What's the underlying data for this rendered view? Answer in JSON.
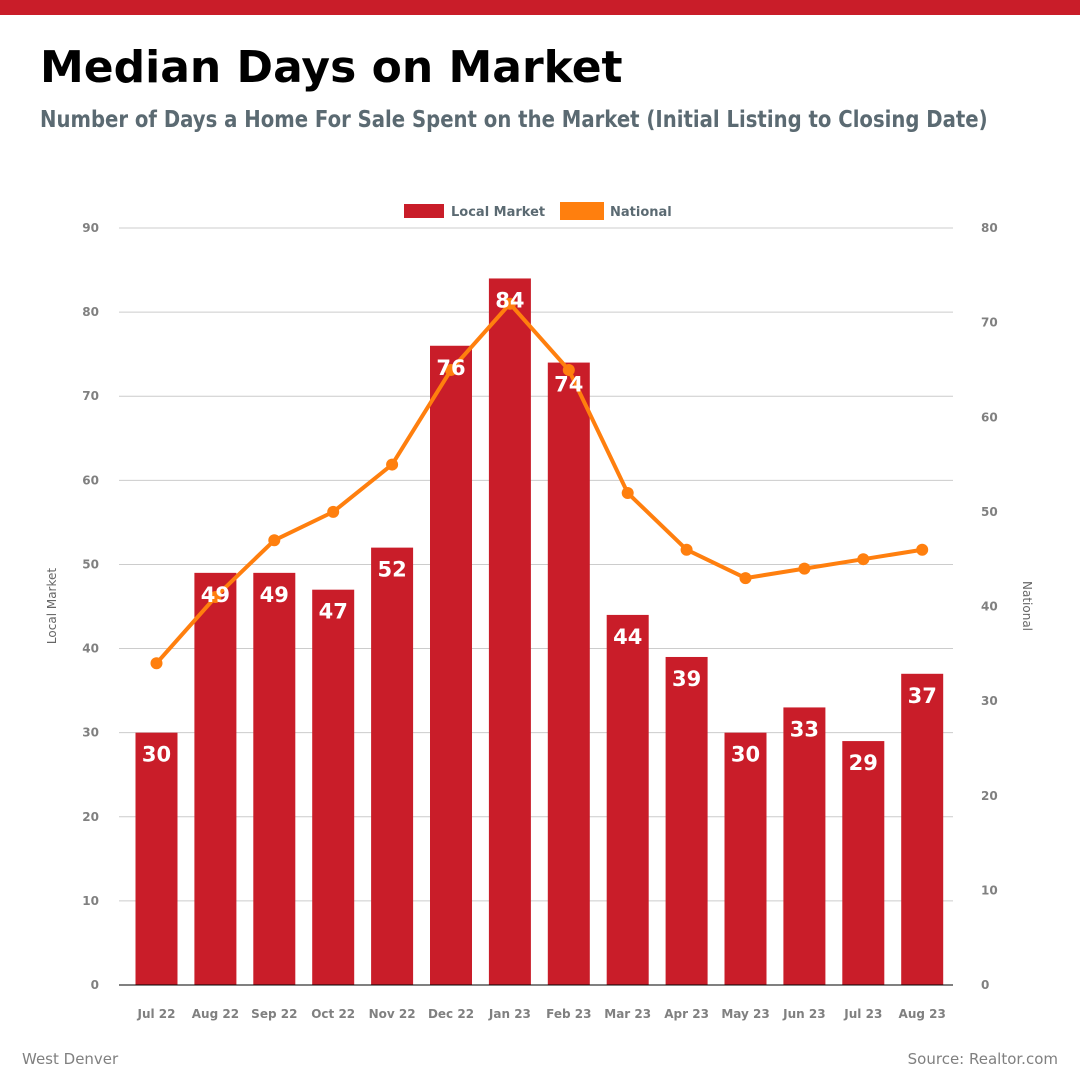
{
  "header": {
    "title": "Median Days on Market",
    "subtitle": "Number of Days a Home For Sale Spent on the Market (Initial Listing to Closing Date)"
  },
  "footer": {
    "left": "West Denver",
    "right": "Source: Realtor.com"
  },
  "colors": {
    "accent": "#c91d29",
    "bar": "#c91d29",
    "line": "#ff7f0e",
    "subtitle": "#5b6a72",
    "grid": "#cccccc",
    "tick": "#808080"
  },
  "chart_data": {
    "type": "bar",
    "categories": [
      "Jul 22",
      "Aug 22",
      "Sep 22",
      "Oct 22",
      "Nov 22",
      "Dec 22",
      "Jan 23",
      "Feb 23",
      "Mar 23",
      "Apr 23",
      "May 23",
      "Jun 23",
      "Jul 23",
      "Aug 23"
    ],
    "series": [
      {
        "name": "Local Market",
        "type": "bar",
        "axis": "left",
        "values": [
          30,
          49,
          49,
          47,
          52,
          76,
          84,
          74,
          44,
          39,
          30,
          33,
          29,
          37
        ],
        "data_labels": [
          "30",
          "49",
          "49",
          "47",
          "52",
          "76",
          "84",
          "74",
          "44",
          "39",
          "30",
          "33",
          "29",
          "37"
        ]
      },
      {
        "name": "National",
        "type": "line",
        "axis": "right",
        "values": [
          34,
          41,
          47,
          50,
          55,
          65,
          72,
          65,
          52,
          46,
          43,
          44,
          45,
          46
        ]
      }
    ],
    "ylabel": "Local Market",
    "y2label": "National",
    "ylim": [
      0,
      90
    ],
    "y2lim": [
      0,
      80
    ],
    "yticks": [
      "0",
      "10",
      "20",
      "30",
      "40",
      "50",
      "60",
      "70",
      "80",
      "90"
    ],
    "y2ticks": [
      "0",
      "10",
      "20",
      "30",
      "40",
      "50",
      "60",
      "70",
      "80"
    ],
    "grid": true,
    "legend": "top-center"
  }
}
